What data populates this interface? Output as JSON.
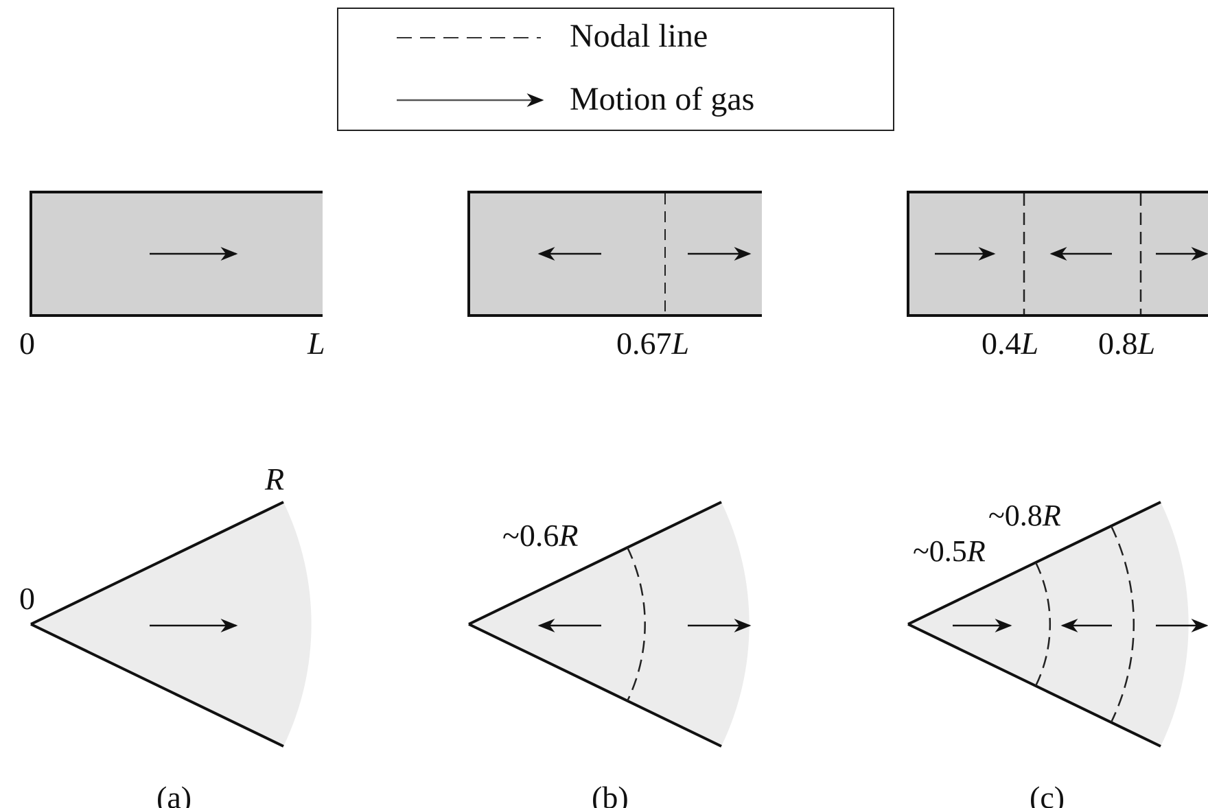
{
  "legend": {
    "nodal_line": "Nodal line",
    "motion_of_gas": "Motion of gas"
  },
  "tubes": {
    "a": {
      "label_start": "0",
      "label_end": "L"
    },
    "b": {
      "label_node_num": "0.67",
      "label_node_var": "L"
    },
    "c": {
      "label_node1_num": "0.4",
      "label_node1_var": "L",
      "label_node2_num": "0.8",
      "label_node2_var": "L"
    }
  },
  "wedges": {
    "a": {
      "label_origin": "0",
      "label_radius": "R"
    },
    "b": {
      "label_node_num": "~0.6",
      "label_node_var": "R"
    },
    "c": {
      "label_node1_num": "~0.5",
      "label_node1_var": "R",
      "label_node2_num": "~0.8",
      "label_node2_var": "R"
    }
  },
  "captions": {
    "a": "(a)",
    "b": "(b)",
    "c": "(c)"
  },
  "colors": {
    "gas_fill": "#d2d2d2",
    "wedge_fill": "#ececec",
    "ink": "#111111"
  }
}
